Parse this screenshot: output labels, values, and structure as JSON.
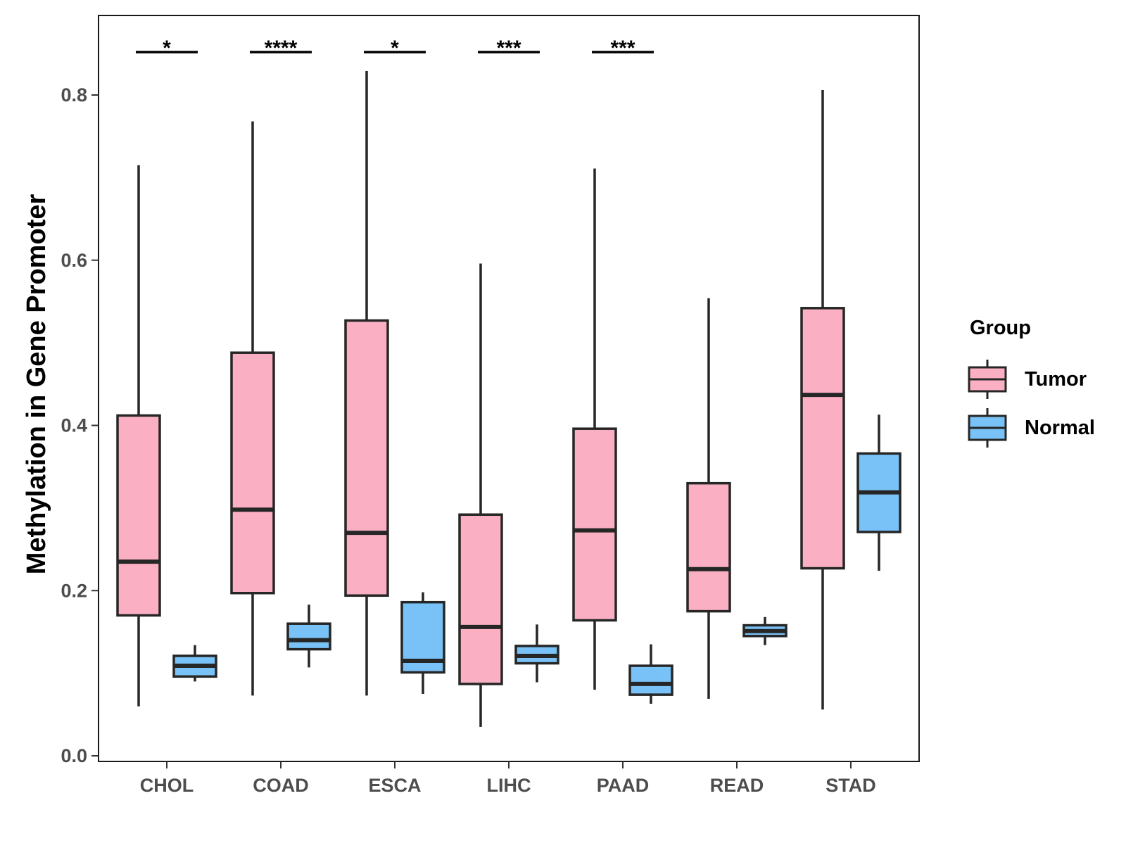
{
  "chart_data": {
    "type": "boxplot",
    "title": "",
    "xlabel": "",
    "ylabel": "Methylation in Gene Promoter",
    "ylim": [
      0.0,
      0.88
    ],
    "yticks": [
      0.0,
      0.2,
      0.4,
      0.6,
      0.8
    ],
    "ytick_labels": [
      "0.0",
      "0.2",
      "0.4",
      "0.6",
      "0.8"
    ],
    "grid": false,
    "categories": [
      "CHOL",
      "COAD",
      "ESCA",
      "LIHC",
      "PAAD",
      "READ",
      "STAD"
    ],
    "series": [
      {
        "name": "Tumor",
        "color": "#FAB0C2",
        "boxes": [
          {
            "min": 0.06,
            "q1": 0.17,
            "median": 0.235,
            "q3": 0.412,
            "max": 0.715
          },
          {
            "min": 0.073,
            "q1": 0.197,
            "median": 0.298,
            "q3": 0.488,
            "max": 0.768
          },
          {
            "min": 0.073,
            "q1": 0.194,
            "median": 0.27,
            "q3": 0.527,
            "max": 0.829
          },
          {
            "min": 0.035,
            "q1": 0.087,
            "median": 0.156,
            "q3": 0.292,
            "max": 0.596
          },
          {
            "min": 0.08,
            "q1": 0.164,
            "median": 0.273,
            "q3": 0.396,
            "max": 0.711
          },
          {
            "min": 0.069,
            "q1": 0.175,
            "median": 0.226,
            "q3": 0.33,
            "max": 0.554
          },
          {
            "min": 0.056,
            "q1": 0.227,
            "median": 0.437,
            "q3": 0.542,
            "max": 0.806
          }
        ]
      },
      {
        "name": "Normal",
        "color": "#79C2F7",
        "boxes": [
          {
            "min": 0.09,
            "q1": 0.096,
            "median": 0.109,
            "q3": 0.121,
            "max": 0.134
          },
          {
            "min": 0.107,
            "q1": 0.129,
            "median": 0.14,
            "q3": 0.16,
            "max": 0.183
          },
          {
            "min": 0.075,
            "q1": 0.101,
            "median": 0.115,
            "q3": 0.186,
            "max": 0.198
          },
          {
            "min": 0.089,
            "q1": 0.112,
            "median": 0.121,
            "q3": 0.133,
            "max": 0.159
          },
          {
            "min": 0.063,
            "q1": 0.074,
            "median": 0.087,
            "q3": 0.109,
            "max": 0.135
          },
          {
            "min": 0.134,
            "q1": 0.145,
            "median": 0.151,
            "q3": 0.158,
            "max": 0.168
          },
          {
            "min": 0.224,
            "q1": 0.271,
            "median": 0.319,
            "q3": 0.366,
            "max": 0.413
          }
        ]
      }
    ],
    "significance": [
      {
        "category": "CHOL",
        "label": "*"
      },
      {
        "category": "COAD",
        "label": "****"
      },
      {
        "category": "ESCA",
        "label": "*"
      },
      {
        "category": "LIHC",
        "label": "***"
      },
      {
        "category": "PAAD",
        "label": "***"
      }
    ],
    "significance_level": 0.852,
    "legend": {
      "title": "Group",
      "position": "right",
      "entries": [
        "Tumor",
        "Normal"
      ]
    },
    "colors": {
      "outline": "#262626",
      "axis_text": "#4D4D4D",
      "panel_border": "#1A1A1A"
    }
  }
}
